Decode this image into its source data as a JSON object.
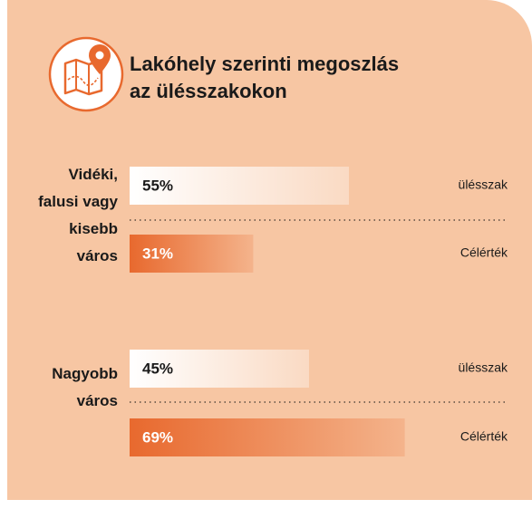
{
  "chart_data": {
    "type": "bar",
    "title": "Lakóhely szerinti megoszlás az ülésszakokon",
    "categories": [
      "Vidéki, falusi vagy kisebb város",
      "Nagyobb város"
    ],
    "series": [
      {
        "name": "ülésszak",
        "color": "#ffffff",
        "values": [
          55,
          45
        ],
        "value_labels": [
          "55%",
          "45%"
        ]
      },
      {
        "name": "Célérték",
        "color": "#e8692e",
        "values": [
          31,
          69
        ],
        "value_labels": [
          "31%",
          "69%"
        ]
      }
    ]
  }
}
